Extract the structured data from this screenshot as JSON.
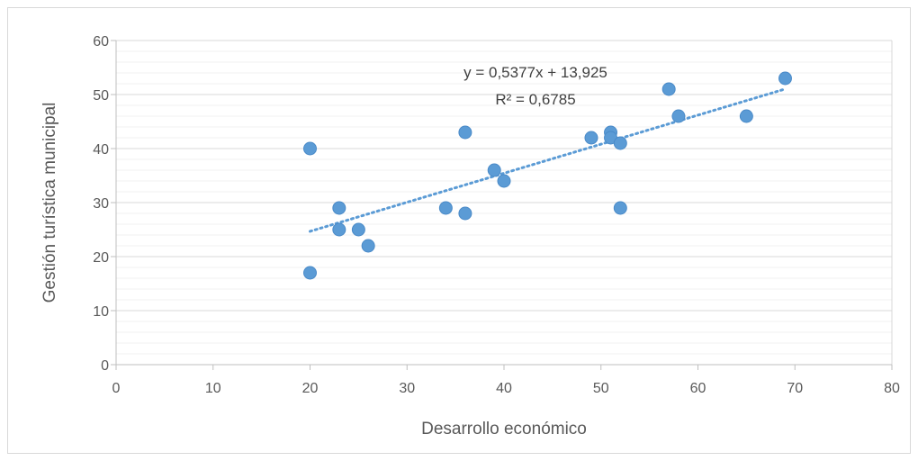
{
  "chart_data": {
    "type": "scatter",
    "xlabel": "Desarrollo económico",
    "ylabel": "Gestión turística municipal",
    "xlim": [
      0,
      80
    ],
    "ylim": [
      0,
      60
    ],
    "x_ticks": [
      "0",
      "10",
      "20",
      "30",
      "40",
      "50",
      "60",
      "70",
      "80"
    ],
    "y_ticks": [
      "0",
      "10",
      "20",
      "30",
      "40",
      "50",
      "60"
    ],
    "x_tick_values": [
      0,
      10,
      20,
      30,
      40,
      50,
      60,
      70,
      80
    ],
    "y_tick_values": [
      0,
      10,
      20,
      30,
      40,
      50,
      60
    ],
    "minor_y_step": 2,
    "grid": true,
    "series": [
      {
        "points": [
          [
            20,
            40
          ],
          [
            20,
            17
          ],
          [
            23,
            29
          ],
          [
            23,
            25
          ],
          [
            25,
            25
          ],
          [
            26,
            22
          ],
          [
            34,
            29
          ],
          [
            36,
            43
          ],
          [
            36,
            28
          ],
          [
            39,
            36
          ],
          [
            40,
            34
          ],
          [
            49,
            42
          ],
          [
            51,
            43
          ],
          [
            51,
            42
          ],
          [
            52,
            41
          ],
          [
            52,
            29
          ],
          [
            57,
            51
          ],
          [
            58,
            46
          ],
          [
            65,
            46
          ],
          [
            69,
            53
          ]
        ],
        "color": "#5B9BD5"
      }
    ],
    "trendline": {
      "type": "linear",
      "slope": 0.5377,
      "intercept": 13.925,
      "x_range": [
        20,
        69
      ],
      "equation": "y = 0,5377x + 13,925",
      "r_squared": "R² = 0,6785",
      "color": "#5B9BD5",
      "style": "dotted"
    },
    "colors": {
      "grid": "#d9d9d9",
      "axis": "#bfbfbf",
      "text": "#595959"
    }
  }
}
